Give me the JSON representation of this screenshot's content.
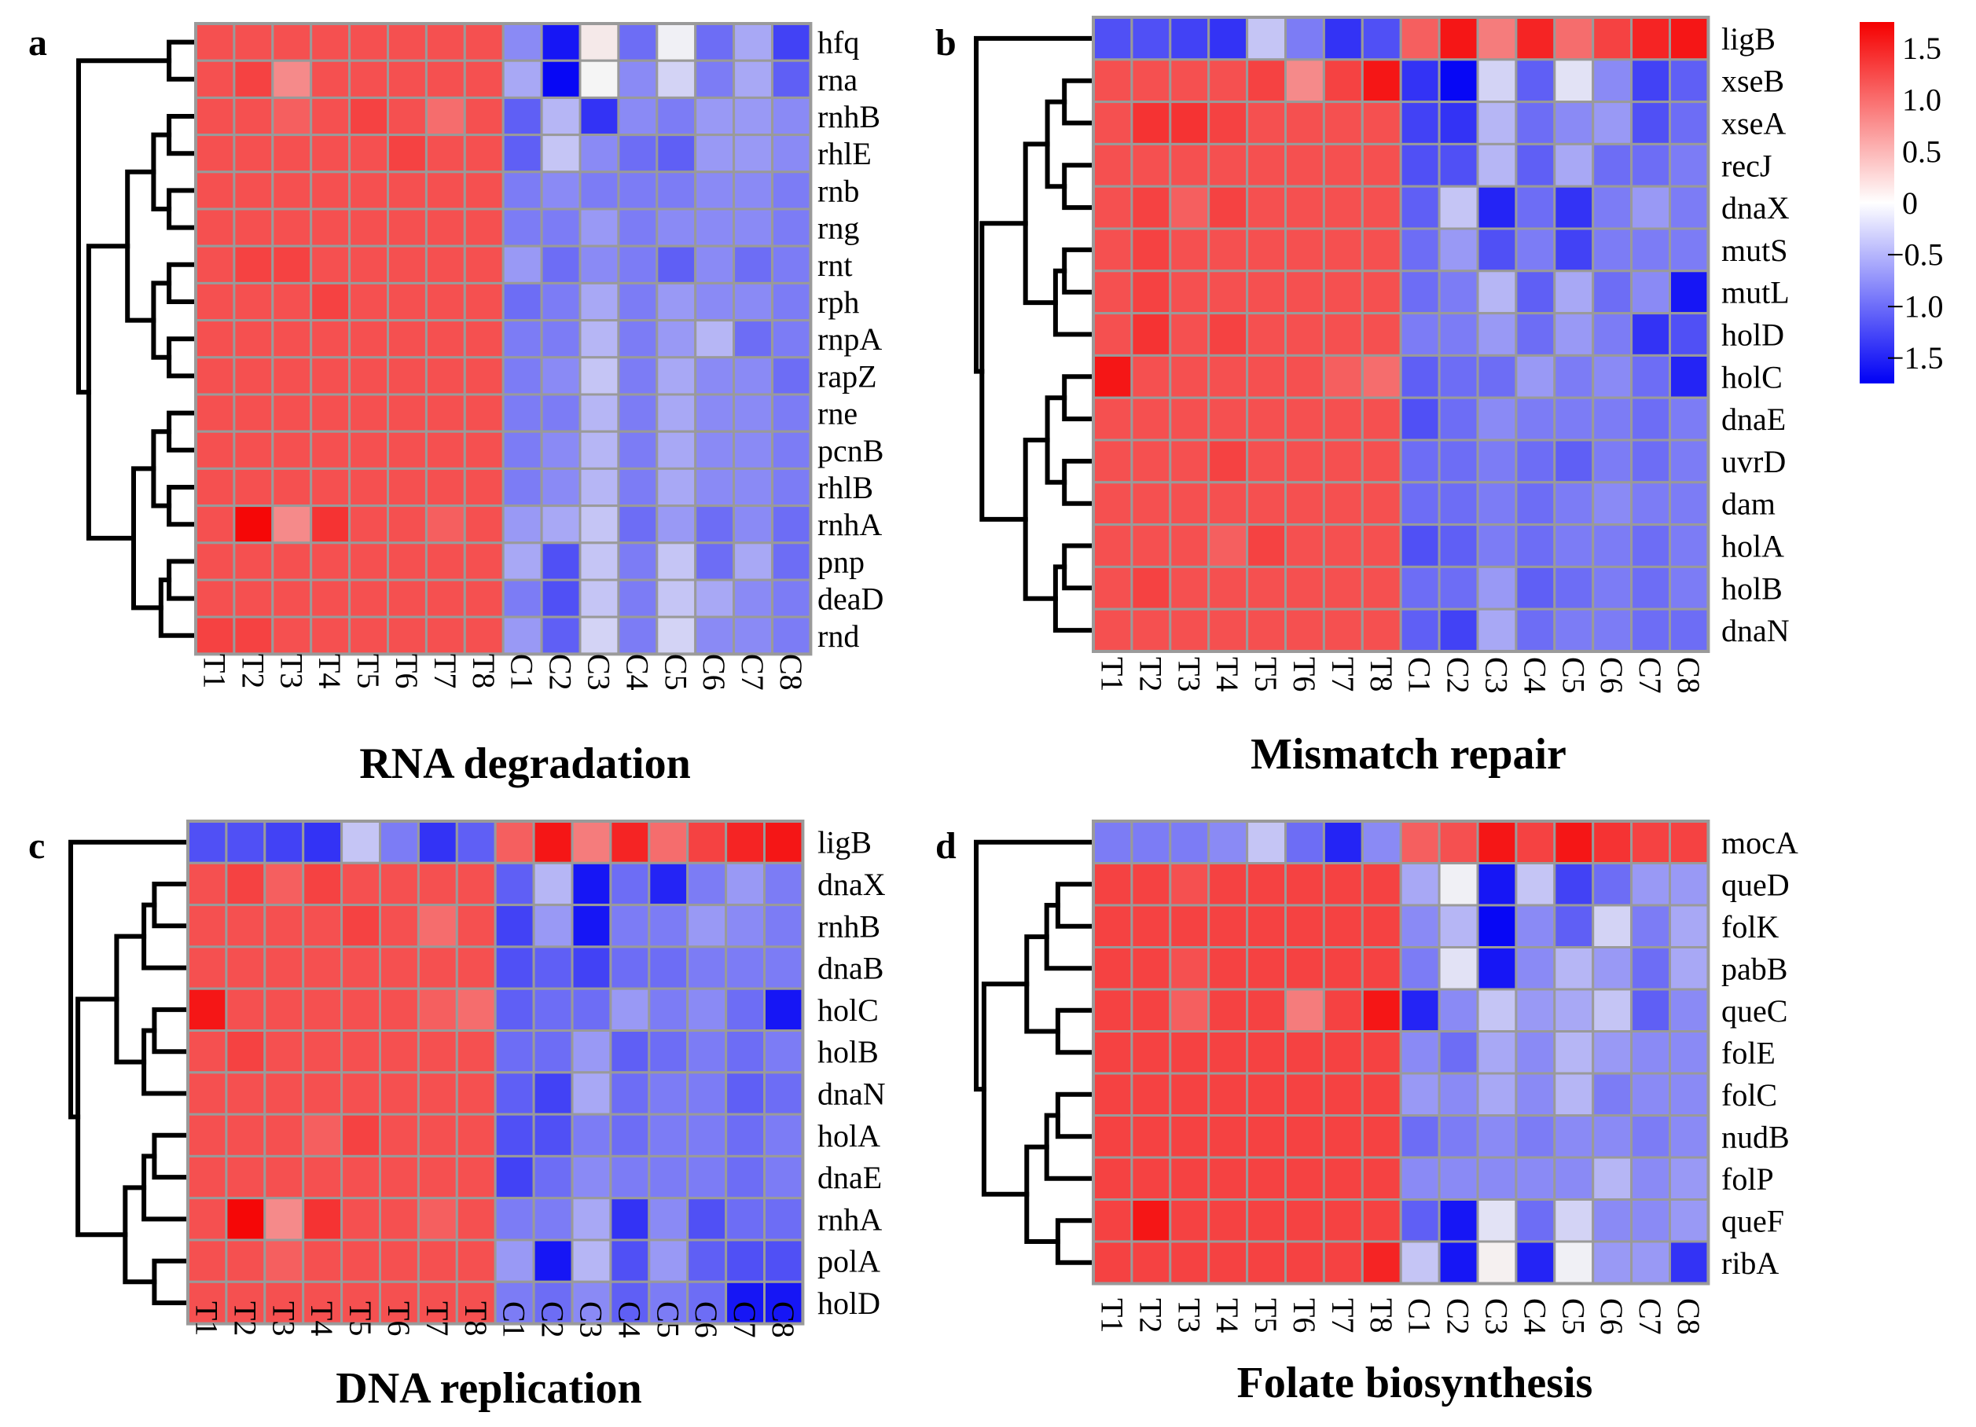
{
  "figure": {
    "colors": {
      "low": "#0000f5",
      "mid": "#ffffff",
      "high": "#f50000",
      "grid": "#9a9a9a"
    }
  },
  "legend": {
    "ticks": [
      "1.5",
      "1.0",
      "0.5",
      "0",
      "−0.5",
      "−1.0",
      "−1.5"
    ],
    "range": [
      -1.75,
      1.75
    ]
  },
  "chart_data": [
    {
      "type": "heatmap",
      "panel": "a",
      "title": "RNA degradation",
      "x": [
        "T1",
        "T2",
        "T3",
        "T4",
        "T5",
        "T6",
        "T7",
        "T8",
        "C1",
        "C2",
        "C3",
        "C4",
        "C5",
        "C6",
        "C7",
        "C8"
      ],
      "y": [
        "hfq",
        "rna",
        "rnhB",
        "rhlE",
        "rnb",
        "rng",
        "rnt",
        "rph",
        "rnpA",
        "rapZ",
        "rne",
        "pcnB",
        "rhlB",
        "rnhA",
        "pnp",
        "deaD",
        "rnd"
      ],
      "values": [
        [
          1.2,
          1.2,
          1.2,
          1.2,
          1.2,
          1.2,
          1.2,
          1.2,
          -0.8,
          -1.6,
          0.15,
          -1.0,
          -0.1,
          -1.0,
          -0.6,
          -1.3
        ],
        [
          1.2,
          1.3,
          0.8,
          1.2,
          1.2,
          1.2,
          1.2,
          1.2,
          -0.6,
          -1.7,
          0.05,
          -0.8,
          -0.3,
          -0.9,
          -0.6,
          -1.1
        ],
        [
          1.2,
          1.2,
          1.1,
          1.2,
          1.3,
          1.2,
          1.0,
          1.2,
          -1.1,
          -0.5,
          -1.4,
          -0.8,
          -0.9,
          -0.7,
          -0.7,
          -0.8
        ],
        [
          1.2,
          1.2,
          1.2,
          1.2,
          1.2,
          1.3,
          1.2,
          1.2,
          -1.1,
          -0.4,
          -0.8,
          -1.0,
          -1.1,
          -0.7,
          -0.7,
          -0.8
        ],
        [
          1.2,
          1.2,
          1.2,
          1.2,
          1.2,
          1.2,
          1.2,
          1.2,
          -0.9,
          -0.8,
          -0.9,
          -0.9,
          -0.9,
          -0.8,
          -0.8,
          -0.9
        ],
        [
          1.2,
          1.2,
          1.2,
          1.2,
          1.2,
          1.2,
          1.2,
          1.2,
          -0.9,
          -0.9,
          -0.7,
          -0.9,
          -0.8,
          -0.8,
          -0.8,
          -0.9
        ],
        [
          1.2,
          1.3,
          1.3,
          1.2,
          1.2,
          1.2,
          1.2,
          1.2,
          -0.7,
          -1.0,
          -0.8,
          -0.9,
          -1.1,
          -0.8,
          -1.0,
          -0.9
        ],
        [
          1.2,
          1.2,
          1.2,
          1.3,
          1.2,
          1.2,
          1.2,
          1.2,
          -1.0,
          -0.9,
          -0.6,
          -0.9,
          -0.7,
          -0.8,
          -0.8,
          -0.9
        ],
        [
          1.2,
          1.2,
          1.2,
          1.2,
          1.2,
          1.2,
          1.2,
          1.2,
          -0.9,
          -0.9,
          -0.5,
          -0.9,
          -0.7,
          -0.5,
          -1.0,
          -0.9
        ],
        [
          1.2,
          1.2,
          1.2,
          1.2,
          1.2,
          1.2,
          1.2,
          1.2,
          -0.9,
          -0.8,
          -0.4,
          -0.9,
          -0.6,
          -0.8,
          -0.8,
          -1.0
        ],
        [
          1.2,
          1.2,
          1.2,
          1.2,
          1.2,
          1.2,
          1.2,
          1.2,
          -0.9,
          -0.9,
          -0.5,
          -0.9,
          -0.6,
          -0.8,
          -0.8,
          -0.9
        ],
        [
          1.2,
          1.2,
          1.2,
          1.2,
          1.2,
          1.2,
          1.2,
          1.2,
          -0.9,
          -0.8,
          -0.5,
          -0.9,
          -0.6,
          -0.8,
          -0.8,
          -0.9
        ],
        [
          1.2,
          1.2,
          1.2,
          1.2,
          1.2,
          1.2,
          1.2,
          1.2,
          -0.9,
          -0.8,
          -0.5,
          -0.9,
          -0.6,
          -0.8,
          -0.8,
          -0.9
        ],
        [
          1.2,
          1.7,
          0.8,
          1.4,
          1.2,
          1.2,
          1.1,
          1.2,
          -0.7,
          -0.6,
          -0.4,
          -1.0,
          -0.7,
          -1.0,
          -0.8,
          -1.0
        ],
        [
          1.2,
          1.2,
          1.2,
          1.2,
          1.2,
          1.2,
          1.2,
          1.2,
          -0.6,
          -1.2,
          -0.4,
          -0.9,
          -0.4,
          -1.0,
          -0.6,
          -1.0
        ],
        [
          1.2,
          1.2,
          1.2,
          1.2,
          1.2,
          1.2,
          1.2,
          1.2,
          -0.9,
          -1.2,
          -0.4,
          -0.9,
          -0.4,
          -0.6,
          -0.8,
          -0.9
        ],
        [
          1.3,
          1.3,
          1.2,
          1.2,
          1.2,
          1.2,
          1.2,
          1.2,
          -0.7,
          -1.1,
          -0.3,
          -0.9,
          -0.3,
          -0.8,
          -0.8,
          -0.9
        ]
      ]
    },
    {
      "type": "heatmap",
      "panel": "b",
      "title": "Mismatch repair",
      "x": [
        "T1",
        "T2",
        "T3",
        "T4",
        "T5",
        "T6",
        "T7",
        "T8",
        "C1",
        "C2",
        "C3",
        "C4",
        "C5",
        "C6",
        "C7",
        "C8"
      ],
      "y": [
        "ligB",
        "xseB",
        "xseA",
        "recJ",
        "dnaX",
        "mutS",
        "mutL",
        "holD",
        "holC",
        "dnaE",
        "uvrD",
        "dam",
        "holA",
        "holB",
        "dnaN"
      ],
      "values": [
        [
          -1.2,
          -1.2,
          -1.3,
          -1.4,
          -0.4,
          -0.9,
          -1.4,
          -1.2,
          1.1,
          1.6,
          0.9,
          1.5,
          1.0,
          1.3,
          1.5,
          1.6
        ],
        [
          1.2,
          1.2,
          1.2,
          1.2,
          1.3,
          0.8,
          1.3,
          1.6,
          -1.4,
          -1.7,
          -0.3,
          -1.1,
          -0.2,
          -0.8,
          -1.3,
          -1.1
        ],
        [
          1.2,
          1.4,
          1.4,
          1.3,
          1.2,
          1.2,
          1.2,
          1.2,
          -1.3,
          -1.4,
          -0.5,
          -1.0,
          -0.8,
          -0.7,
          -1.2,
          -1.0
        ],
        [
          1.2,
          1.2,
          1.2,
          1.2,
          1.2,
          1.2,
          1.2,
          1.2,
          -1.2,
          -1.2,
          -0.5,
          -1.1,
          -0.6,
          -1.0,
          -1.0,
          -0.9
        ],
        [
          1.2,
          1.3,
          1.1,
          1.3,
          1.2,
          1.2,
          1.2,
          1.2,
          -1.1,
          -0.4,
          -1.5,
          -1.0,
          -1.4,
          -0.9,
          -0.7,
          -0.9
        ],
        [
          1.2,
          1.3,
          1.2,
          1.2,
          1.2,
          1.2,
          1.2,
          1.2,
          -1.0,
          -0.7,
          -1.2,
          -0.9,
          -1.3,
          -0.9,
          -0.9,
          -0.9
        ],
        [
          1.2,
          1.3,
          1.2,
          1.2,
          1.2,
          1.2,
          1.2,
          1.2,
          -1.0,
          -0.9,
          -0.5,
          -1.1,
          -0.6,
          -1.0,
          -0.8,
          -1.6
        ],
        [
          1.2,
          1.4,
          1.2,
          1.3,
          1.2,
          1.2,
          1.2,
          1.2,
          -0.9,
          -0.9,
          -0.7,
          -1.0,
          -0.7,
          -0.9,
          -1.4,
          -1.2
        ],
        [
          1.6,
          1.2,
          1.2,
          1.2,
          1.2,
          1.2,
          1.1,
          1.0,
          -1.1,
          -1.0,
          -1.0,
          -0.7,
          -0.9,
          -0.8,
          -1.0,
          -1.5
        ],
        [
          1.2,
          1.2,
          1.2,
          1.2,
          1.2,
          1.2,
          1.2,
          1.2,
          -1.2,
          -1.0,
          -0.8,
          -0.9,
          -0.9,
          -0.9,
          -1.0,
          -0.9
        ],
        [
          1.2,
          1.2,
          1.2,
          1.3,
          1.2,
          1.2,
          1.2,
          1.2,
          -1.0,
          -1.0,
          -0.9,
          -1.0,
          -1.1,
          -0.9,
          -1.0,
          -0.9
        ],
        [
          1.2,
          1.2,
          1.2,
          1.2,
          1.2,
          1.2,
          1.2,
          1.2,
          -1.0,
          -1.0,
          -0.9,
          -1.0,
          -0.9,
          -0.8,
          -0.9,
          -0.9
        ],
        [
          1.2,
          1.2,
          1.2,
          1.1,
          1.3,
          1.2,
          1.2,
          1.2,
          -1.2,
          -1.1,
          -0.9,
          -1.0,
          -0.9,
          -0.9,
          -1.0,
          -0.9
        ],
        [
          1.2,
          1.3,
          1.2,
          1.2,
          1.2,
          1.2,
          1.2,
          1.2,
          -1.0,
          -1.0,
          -0.7,
          -1.1,
          -1.0,
          -0.9,
          -1.0,
          -0.9
        ],
        [
          1.2,
          1.2,
          1.2,
          1.2,
          1.2,
          1.2,
          1.2,
          1.2,
          -1.1,
          -1.3,
          -0.6,
          -1.0,
          -0.9,
          -0.9,
          -1.0,
          -1.0
        ]
      ]
    },
    {
      "type": "heatmap",
      "panel": "c",
      "title": "DNA replication",
      "x": [
        "T1",
        "T2",
        "T3",
        "T4",
        "T5",
        "T6",
        "T7",
        "T8",
        "C1",
        "C2",
        "C3",
        "C4",
        "C5",
        "C6",
        "C7",
        "C8"
      ],
      "y": [
        "ligB",
        "dnaX",
        "rnhB",
        "dnaB",
        "holC",
        "holB",
        "dnaN",
        "holA",
        "dnaE",
        "rnhA",
        "polA",
        "holD"
      ],
      "values": [
        [
          -1.2,
          -1.2,
          -1.3,
          -1.4,
          -0.4,
          -0.9,
          -1.4,
          -1.1,
          1.1,
          1.6,
          0.9,
          1.5,
          1.0,
          1.3,
          1.5,
          1.6
        ],
        [
          1.2,
          1.3,
          1.1,
          1.3,
          1.2,
          1.2,
          1.2,
          1.2,
          -1.1,
          -0.5,
          -1.6,
          -1.0,
          -1.5,
          -0.9,
          -0.7,
          -0.9
        ],
        [
          1.2,
          1.2,
          1.2,
          1.2,
          1.3,
          1.2,
          1.0,
          1.2,
          -1.3,
          -0.7,
          -1.6,
          -0.9,
          -0.9,
          -0.7,
          -0.8,
          -0.9
        ],
        [
          1.2,
          1.2,
          1.2,
          1.2,
          1.2,
          1.2,
          1.2,
          1.2,
          -1.2,
          -1.1,
          -1.3,
          -1.0,
          -1.0,
          -0.9,
          -0.9,
          -0.9
        ],
        [
          1.6,
          1.2,
          1.2,
          1.2,
          1.2,
          1.2,
          1.1,
          1.0,
          -1.1,
          -1.0,
          -1.0,
          -0.7,
          -0.9,
          -0.8,
          -1.0,
          -1.6
        ],
        [
          1.2,
          1.3,
          1.2,
          1.2,
          1.2,
          1.2,
          1.2,
          1.2,
          -1.0,
          -1.0,
          -0.7,
          -1.1,
          -1.0,
          -0.9,
          -1.0,
          -0.9
        ],
        [
          1.2,
          1.2,
          1.2,
          1.2,
          1.2,
          1.2,
          1.2,
          1.2,
          -1.1,
          -1.3,
          -0.6,
          -1.0,
          -0.9,
          -0.9,
          -1.1,
          -1.0
        ],
        [
          1.2,
          1.2,
          1.2,
          1.1,
          1.3,
          1.2,
          1.2,
          1.2,
          -1.2,
          -1.2,
          -0.9,
          -1.0,
          -0.9,
          -0.9,
          -1.0,
          -0.9
        ],
        [
          1.2,
          1.2,
          1.2,
          1.2,
          1.2,
          1.2,
          1.2,
          1.2,
          -1.3,
          -1.0,
          -0.8,
          -0.9,
          -0.9,
          -0.9,
          -1.0,
          -0.9
        ],
        [
          1.2,
          1.7,
          0.8,
          1.4,
          1.2,
          1.2,
          1.1,
          1.2,
          -0.9,
          -0.9,
          -0.6,
          -1.4,
          -0.8,
          -1.2,
          -1.0,
          -1.0
        ],
        [
          1.2,
          1.2,
          1.1,
          1.2,
          1.2,
          1.2,
          1.2,
          1.2,
          -0.7,
          -1.6,
          -0.5,
          -1.2,
          -0.7,
          -1.1,
          -1.2,
          -1.2
        ],
        [
          1.2,
          1.2,
          1.2,
          1.2,
          1.2,
          1.2,
          1.2,
          1.2,
          -0.9,
          -1.0,
          -0.8,
          -1.1,
          -0.9,
          -1.0,
          -1.6,
          -1.6
        ]
      ]
    },
    {
      "type": "heatmap",
      "panel": "d",
      "title": "Folate biosynthesis",
      "x": [
        "T1",
        "T2",
        "T3",
        "T4",
        "T5",
        "T6",
        "T7",
        "T8",
        "C1",
        "C2",
        "C3",
        "C4",
        "C5",
        "C6",
        "C7",
        "C8"
      ],
      "y": [
        "mocA",
        "queD",
        "folK",
        "pabB",
        "queC",
        "folE",
        "folC",
        "nudB",
        "folP",
        "queF",
        "ribA"
      ],
      "values": [
        [
          -0.9,
          -0.9,
          -0.9,
          -0.8,
          -0.4,
          -1.0,
          -1.5,
          -0.8,
          1.1,
          1.2,
          1.6,
          1.3,
          1.6,
          1.4,
          1.3,
          1.3
        ],
        [
          1.3,
          1.3,
          1.2,
          1.3,
          1.3,
          1.3,
          1.3,
          1.3,
          -0.6,
          -0.1,
          -1.6,
          -0.4,
          -1.3,
          -1.0,
          -0.7,
          -0.7
        ],
        [
          1.3,
          1.3,
          1.3,
          1.3,
          1.3,
          1.3,
          1.3,
          1.3,
          -0.8,
          -0.5,
          -1.7,
          -0.8,
          -1.1,
          -0.3,
          -0.9,
          -0.6
        ],
        [
          1.3,
          1.3,
          1.2,
          1.3,
          1.3,
          1.3,
          1.3,
          1.3,
          -0.9,
          -0.2,
          -1.6,
          -0.8,
          -0.5,
          -0.7,
          -1.0,
          -0.6
        ],
        [
          1.3,
          1.3,
          1.1,
          1.3,
          1.3,
          0.9,
          1.3,
          1.6,
          -1.5,
          -0.8,
          -0.4,
          -0.7,
          -0.6,
          -0.4,
          -1.1,
          -0.8
        ],
        [
          1.3,
          1.3,
          1.3,
          1.3,
          1.3,
          1.3,
          1.3,
          1.3,
          -0.8,
          -1.0,
          -0.6,
          -0.8,
          -0.5,
          -0.7,
          -0.8,
          -0.8
        ],
        [
          1.3,
          1.3,
          1.3,
          1.3,
          1.3,
          1.3,
          1.3,
          1.3,
          -0.7,
          -0.8,
          -0.6,
          -0.8,
          -0.5,
          -0.9,
          -0.8,
          -0.8
        ],
        [
          1.3,
          1.3,
          1.3,
          1.3,
          1.3,
          1.3,
          1.3,
          1.3,
          -1.0,
          -0.9,
          -0.8,
          -0.9,
          -0.8,
          -0.8,
          -0.9,
          -0.8
        ],
        [
          1.3,
          1.3,
          1.3,
          1.3,
          1.3,
          1.3,
          1.3,
          1.3,
          -0.8,
          -0.8,
          -0.8,
          -0.8,
          -0.8,
          -0.5,
          -0.8,
          -0.7
        ],
        [
          1.3,
          1.6,
          1.3,
          1.3,
          1.3,
          1.3,
          1.3,
          1.3,
          -1.1,
          -1.6,
          -0.2,
          -1.0,
          -0.3,
          -0.8,
          -0.8,
          -0.7
        ],
        [
          1.3,
          1.3,
          1.3,
          1.3,
          1.3,
          1.3,
          1.3,
          1.5,
          -0.4,
          -1.6,
          0.1,
          -1.5,
          -0.1,
          -0.7,
          -0.7,
          -1.4
        ]
      ]
    }
  ]
}
